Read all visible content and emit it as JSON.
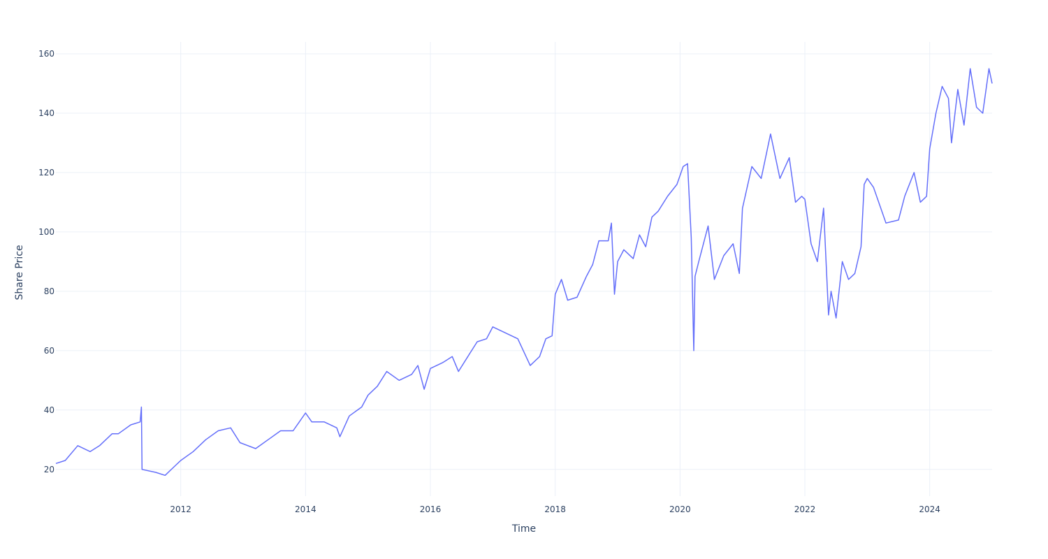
{
  "chart_data": {
    "type": "line",
    "title": "",
    "xlabel": "Time",
    "ylabel": "Share Price",
    "xlim": [
      2010.0,
      2025.0
    ],
    "ylim": [
      11,
      164
    ],
    "x_ticks": [
      2012,
      2014,
      2016,
      2018,
      2020,
      2022,
      2024
    ],
    "x_tick_labels": [
      "2012",
      "2014",
      "2016",
      "2018",
      "2020",
      "2022",
      "2024"
    ],
    "y_ticks": [
      20,
      40,
      60,
      80,
      100,
      120,
      140,
      160
    ],
    "y_tick_labels": [
      "20",
      "40",
      "60",
      "80",
      "100",
      "120",
      "140",
      "160"
    ],
    "grid": true,
    "legend": "none",
    "line_color": "#636efa",
    "series": [
      {
        "x": [
          2010.0,
          2010.15,
          2010.35,
          2010.55,
          2010.7,
          2010.9,
          2011.0,
          2011.2,
          2011.35,
          2011.37,
          2011.38,
          2011.6,
          2011.75,
          2011.9,
          2012.0,
          2012.2,
          2012.4,
          2012.6,
          2012.8,
          2012.95,
          2013.2,
          2013.4,
          2013.6,
          2013.8,
          2013.9,
          2014.0,
          2014.1,
          2014.3,
          2014.5,
          2014.55,
          2014.7,
          2014.9,
          2015.0,
          2015.15,
          2015.3,
          2015.5,
          2015.7,
          2015.8,
          2015.9,
          2016.0,
          2016.2,
          2016.35,
          2016.45,
          2016.6,
          2016.75,
          2016.9,
          2017.0,
          2017.2,
          2017.4,
          2017.6,
          2017.75,
          2017.85,
          2017.95,
          2018.0,
          2018.1,
          2018.2,
          2018.35,
          2018.5,
          2018.6,
          2018.7,
          2018.85,
          2018.9,
          2018.95,
          2019.0,
          2019.1,
          2019.25,
          2019.35,
          2019.45,
          2019.55,
          2019.65,
          2019.8,
          2019.95,
          2020.05,
          2020.12,
          2020.18,
          2020.22,
          2020.24,
          2020.3,
          2020.45,
          2020.55,
          2020.7,
          2020.85,
          2020.95,
          2021.0,
          2021.15,
          2021.3,
          2021.45,
          2021.6,
          2021.75,
          2021.85,
          2021.95,
          2022.0,
          2022.1,
          2022.2,
          2022.3,
          2022.38,
          2022.42,
          2022.5,
          2022.6,
          2022.7,
          2022.8,
          2022.9,
          2022.95,
          2023.0,
          2023.1,
          2023.3,
          2023.5,
          2023.6,
          2023.75,
          2023.85,
          2023.95,
          2024.0,
          2024.1,
          2024.2,
          2024.3,
          2024.35,
          2024.45,
          2024.55,
          2024.65,
          2024.75,
          2024.85,
          2024.95,
          2025.0
        ],
        "y": [
          22,
          23,
          28,
          26,
          28,
          32,
          32,
          35,
          36,
          41,
          20,
          19,
          18,
          21,
          23,
          26,
          30,
          33,
          34,
          29,
          27,
          30,
          33,
          33,
          36,
          39,
          36,
          36,
          34,
          31,
          38,
          41,
          45,
          48,
          53,
          50,
          52,
          55,
          47,
          54,
          56,
          58,
          53,
          58,
          63,
          64,
          68,
          66,
          64,
          55,
          58,
          64,
          65,
          79,
          84,
          77,
          78,
          85,
          89,
          97,
          97,
          103,
          79,
          90,
          94,
          91,
          99,
          95,
          105,
          107,
          112,
          116,
          122,
          123,
          98,
          60,
          85,
          90,
          102,
          84,
          92,
          96,
          86,
          108,
          122,
          118,
          133,
          118,
          125,
          110,
          112,
          111,
          96,
          90,
          108,
          72,
          80,
          71,
          90,
          84,
          86,
          95,
          116,
          118,
          115,
          103,
          104,
          112,
          120,
          110,
          112,
          128,
          140,
          149,
          145,
          130,
          148,
          136,
          155,
          142,
          140,
          155,
          150
        ]
      }
    ]
  }
}
